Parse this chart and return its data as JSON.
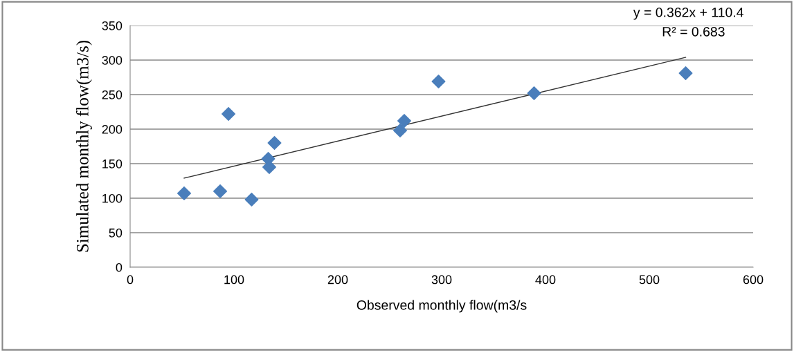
{
  "chart_data": {
    "type": "scatter",
    "xlabel": "Observed monthly flow(m3/s",
    "ylabel": "Simulated monthly flow(m3/s)",
    "xlim": [
      0,
      600
    ],
    "xticks": [
      0,
      100,
      200,
      300,
      400,
      500,
      600
    ],
    "ylim": [
      0,
      350
    ],
    "yticks": [
      0,
      50,
      100,
      150,
      200,
      250,
      300,
      350
    ],
    "grid": "y",
    "marker": "diamond",
    "legend": false,
    "annotations": [
      "y = 0.362x + 110.4",
      "R² = 0.683"
    ],
    "series": [
      {
        "type": "scatter",
        "color": "#4a7ebb",
        "x": [
          52,
          86.7,
          117,
          94.7,
          133,
          134,
          139,
          260,
          264,
          297,
          389,
          535
        ],
        "values": [
          107,
          110,
          98,
          222,
          157,
          145,
          180,
          198,
          212,
          269,
          252,
          281
        ]
      },
      {
        "type": "line",
        "color": "#333333",
        "x": [
          52,
          535
        ],
        "values": [
          129,
          304
        ],
        "marker": "none",
        "line_style": "solid"
      }
    ]
  }
}
